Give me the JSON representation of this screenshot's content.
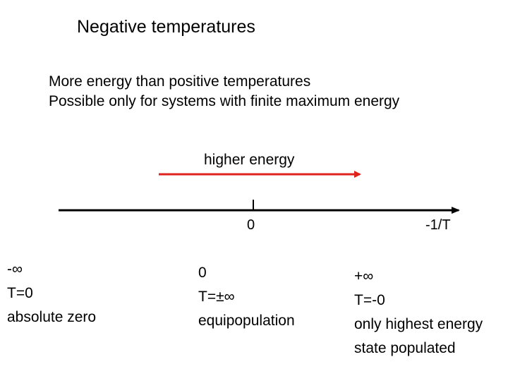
{
  "title": "Negative temperatures",
  "subtitle_lines": [
    "More energy than positive temperatures",
    "Possible only for systems with finite maximum energy"
  ],
  "arrow_label": "higher energy",
  "colors": {
    "arrow": "#e0221c",
    "axis": "#000000",
    "text": "#000000"
  },
  "axis": {
    "tick_labels": [
      "0",
      "-1/T"
    ]
  },
  "blocks": {
    "left": [
      "-∞",
      "T=0",
      "absolute zero"
    ],
    "middle": [
      "0",
      "T=±∞",
      "equipopulation"
    ],
    "right": [
      "+∞",
      "T=-0",
      "only highest energy",
      "state populated"
    ]
  }
}
